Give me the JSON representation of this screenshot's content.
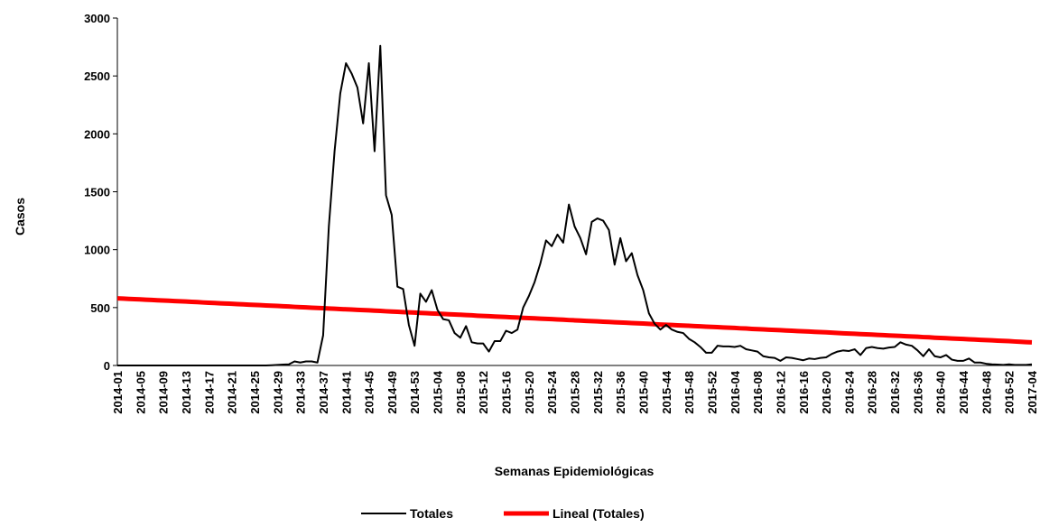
{
  "chart_data": {
    "type": "line",
    "x_label": "Semanas Epidemiológicas",
    "y_label": "Casos",
    "categories": [
      "2014-01",
      null,
      null,
      null,
      "2014-05",
      null,
      null,
      null,
      "2014-09",
      null,
      null,
      null,
      "2014-13",
      null,
      null,
      null,
      "2014-17",
      null,
      null,
      null,
      "2014-21",
      null,
      null,
      null,
      "2014-25",
      null,
      null,
      null,
      "2014-29",
      null,
      null,
      null,
      "2014-33",
      null,
      null,
      null,
      "2014-37",
      null,
      null,
      null,
      "2014-41",
      null,
      null,
      null,
      "2014-45",
      null,
      null,
      null,
      "2014-49",
      null,
      null,
      null,
      "2014-53",
      null,
      null,
      null,
      "2015-04",
      null,
      null,
      null,
      "2015-08",
      null,
      null,
      null,
      "2015-12",
      null,
      null,
      null,
      "2015-16",
      null,
      null,
      null,
      "2015-20",
      null,
      null,
      null,
      "2015-24",
      null,
      null,
      null,
      "2015-28",
      null,
      null,
      null,
      "2015-32",
      null,
      null,
      null,
      "2015-36",
      null,
      null,
      null,
      "2015-40",
      null,
      null,
      null,
      "2015-44",
      null,
      null,
      null,
      "2015-48",
      null,
      null,
      null,
      "2015-52",
      null,
      null,
      null,
      "2016-04",
      null,
      null,
      null,
      "2016-08",
      null,
      null,
      null,
      "2016-12",
      null,
      null,
      null,
      "2016-16",
      null,
      null,
      null,
      "2016-20",
      null,
      null,
      null,
      "2016-24",
      null,
      null,
      null,
      "2016-28",
      null,
      null,
      null,
      "2016-32",
      null,
      null,
      null,
      "2016-36",
      null,
      null,
      null,
      "2016-40",
      null,
      null,
      null,
      "2016-44",
      null,
      null,
      null,
      "2016-48",
      null,
      null,
      null,
      "2016-52",
      null,
      null,
      null,
      "2017-04"
    ],
    "series": [
      {
        "name": "Totales",
        "color": "#000000",
        "width": 2,
        "values": [
          0,
          0,
          0,
          0,
          0,
          0,
          0,
          0,
          0,
          0,
          0,
          0,
          0,
          0,
          0,
          0,
          0,
          0,
          0,
          0,
          0,
          0,
          0,
          0,
          0,
          0,
          0,
          2,
          5,
          8,
          10,
          35,
          25,
          35,
          35,
          25,
          260,
          1200,
          1850,
          2350,
          2610,
          2520,
          2400,
          2090,
          2610,
          1850,
          2760,
          1470,
          1300,
          680,
          660,
          350,
          170,
          620,
          550,
          650,
          480,
          400,
          390,
          280,
          240,
          340,
          200,
          190,
          190,
          120,
          210,
          210,
          300,
          280,
          310,
          500,
          600,
          720,
          880,
          1080,
          1030,
          1130,
          1060,
          1390,
          1200,
          1100,
          960,
          1240,
          1270,
          1250,
          1170,
          870,
          1100,
          900,
          970,
          780,
          650,
          450,
          360,
          310,
          350,
          310,
          290,
          280,
          230,
          200,
          160,
          110,
          110,
          170,
          165,
          165,
          160,
          170,
          140,
          130,
          120,
          80,
          70,
          65,
          40,
          70,
          65,
          55,
          45,
          60,
          55,
          65,
          70,
          100,
          120,
          130,
          125,
          140,
          90,
          150,
          160,
          150,
          145,
          155,
          160,
          200,
          180,
          170,
          130,
          80,
          140,
          80,
          70,
          90,
          50,
          40,
          40,
          60,
          25,
          25,
          15,
          10,
          8,
          5,
          10,
          5,
          5,
          5,
          10
        ]
      },
      {
        "name": "Lineal (Totales)",
        "color": "#ff0000",
        "width": 5,
        "values": [
          580,
          578,
          575,
          573,
          571,
          568,
          566,
          563,
          561,
          559,
          556,
          554,
          552,
          549,
          547,
          544,
          542,
          540,
          537,
          535,
          533,
          530,
          528,
          525,
          523,
          521,
          518,
          516,
          514,
          511,
          509,
          506,
          504,
          502,
          499,
          497,
          495,
          492,
          490,
          487,
          485,
          483,
          480,
          478,
          476,
          473,
          471,
          468,
          466,
          464,
          461,
          459,
          457,
          454,
          452,
          449,
          447,
          445,
          442,
          440,
          438,
          435,
          433,
          430,
          428,
          426,
          423,
          421,
          419,
          416,
          414,
          411,
          409,
          407,
          404,
          402,
          400,
          397,
          395,
          392,
          390,
          388,
          385,
          383,
          381,
          378,
          376,
          373,
          371,
          369,
          366,
          364,
          362,
          359,
          357,
          354,
          352,
          350,
          347,
          345,
          343,
          340,
          338,
          335,
          333,
          331,
          328,
          326,
          324,
          321,
          319,
          316,
          314,
          312,
          309,
          307,
          305,
          302,
          300,
          297,
          295,
          293,
          290,
          288,
          286,
          283,
          281,
          278,
          276,
          274,
          271,
          269,
          267,
          264,
          262,
          259,
          257,
          255,
          252,
          250,
          248,
          245,
          243,
          240,
          238,
          236,
          233,
          231,
          229,
          226,
          224,
          221,
          219,
          217,
          214,
          212,
          210,
          207,
          205,
          202,
          200
        ]
      }
    ],
    "ylim": [
      0,
      3000
    ],
    "yticks": [
      0,
      500,
      1000,
      1500,
      2000,
      2500,
      3000
    ],
    "grid": false,
    "legend": "bottom"
  }
}
